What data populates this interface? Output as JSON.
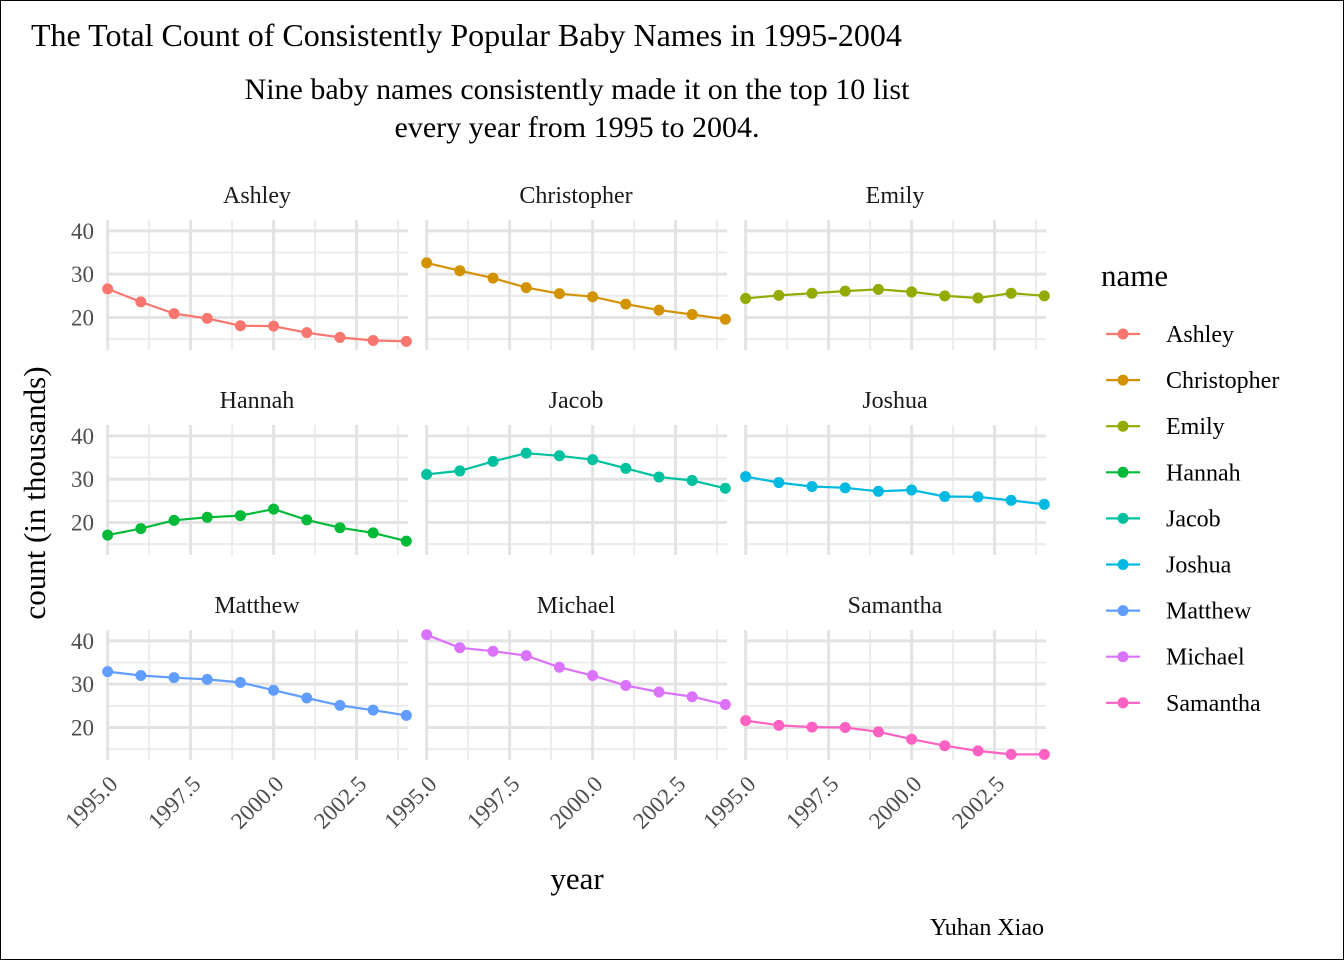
{
  "chart_data": {
    "type": "line",
    "title": "The Total Count of Consistently Popular Baby Names in 1995-2004",
    "subtitle_lines": [
      "Nine baby names consistently made it on the top 10 list",
      "every year from 1995 to 2004."
    ],
    "xlabel": "year",
    "ylabel": "count (in thousands)",
    "caption": "Yuhan Xiao",
    "legend_title": "name",
    "legend_position": "right",
    "facet_layout": "3x3",
    "grid": true,
    "xlim": [
      1994.95,
      2004.05
    ],
    "ylim": [
      12.5,
      42.5
    ],
    "x_ticks": [
      1995,
      1997.5,
      2000,
      2002.5
    ],
    "x_tick_labels": [
      "1995.0",
      "1997.5",
      "2000.0",
      "2002.5"
    ],
    "y_ticks": [
      20,
      30,
      40
    ],
    "y_tick_labels": [
      "20",
      "30",
      "40"
    ],
    "x": [
      1995,
      1996,
      1997,
      1998,
      1999,
      2000,
      2001,
      2002,
      2003,
      2004
    ],
    "series": [
      {
        "name": "Ashley",
        "color": "#F8766D",
        "values": [
          26.6,
          23.6,
          20.9,
          19.8,
          18.1,
          18.0,
          16.5,
          15.4,
          14.7,
          14.5
        ]
      },
      {
        "name": "Christopher",
        "color": "#D39200",
        "values": [
          32.6,
          30.8,
          29.1,
          26.9,
          25.5,
          24.8,
          23.1,
          21.7,
          20.7,
          19.6
        ]
      },
      {
        "name": "Emily",
        "color": "#93AA00",
        "values": [
          24.4,
          25.1,
          25.6,
          26.1,
          26.5,
          25.9,
          25.0,
          24.5,
          25.6,
          25.0
        ]
      },
      {
        "name": "Hannah",
        "color": "#00BA38",
        "values": [
          17.1,
          18.6,
          20.5,
          21.2,
          21.6,
          23.1,
          20.6,
          18.8,
          17.6,
          15.7
        ]
      },
      {
        "name": "Jacob",
        "color": "#00C19F",
        "values": [
          31.1,
          31.9,
          34.1,
          36.0,
          35.4,
          34.5,
          32.5,
          30.5,
          29.7,
          27.9
        ]
      },
      {
        "name": "Joshua",
        "color": "#00B9E3",
        "values": [
          30.6,
          29.2,
          28.3,
          28.0,
          27.2,
          27.5,
          26.0,
          25.9,
          25.1,
          24.2
        ]
      },
      {
        "name": "Matthew",
        "color": "#619CFF",
        "values": [
          32.9,
          32.0,
          31.5,
          31.1,
          30.4,
          28.6,
          26.8,
          25.1,
          24.0,
          22.8
        ]
      },
      {
        "name": "Michael",
        "color": "#DB72FB",
        "values": [
          41.4,
          38.4,
          37.6,
          36.6,
          33.9,
          32.0,
          29.7,
          28.2,
          27.1,
          25.3
        ]
      },
      {
        "name": "Samantha",
        "color": "#FF61C3",
        "values": [
          21.6,
          20.5,
          20.1,
          20.0,
          19.0,
          17.3,
          15.8,
          14.6,
          13.8,
          13.8
        ]
      }
    ]
  }
}
